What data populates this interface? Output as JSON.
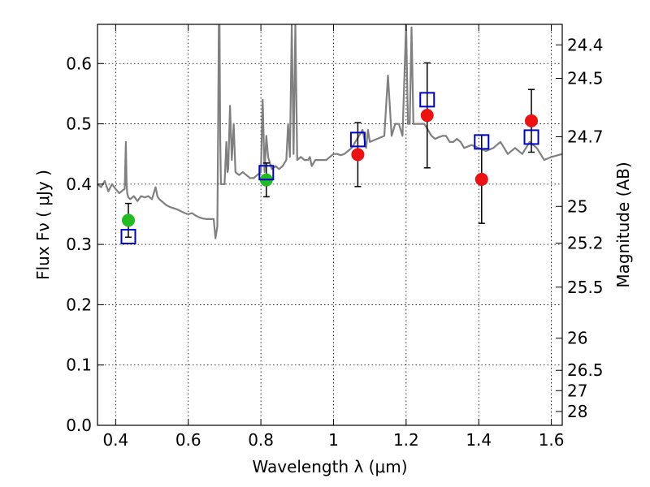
{
  "chart_data": {
    "type": "scatter",
    "xlabel": "Wavelength  λ (μm)",
    "ylabel": "Flux  Fν  ( μJy )",
    "y2label": "Magnitude (AB)",
    "xlim": [
      0.35,
      1.63
    ],
    "ylim": [
      0.0,
      0.665
    ],
    "grid": true,
    "x_ticks": [
      {
        "value": 0.4,
        "label": "0.4"
      },
      {
        "value": 0.6,
        "label": "0.6"
      },
      {
        "value": 0.8,
        "label": "0.8"
      },
      {
        "value": 1.0,
        "label": "1"
      },
      {
        "value": 1.2,
        "label": "1.2"
      },
      {
        "value": 1.4,
        "label": "1.4"
      },
      {
        "value": 1.6,
        "label": "1.6"
      }
    ],
    "y_ticks": [
      {
        "value": 0.0,
        "label": "0.0"
      },
      {
        "value": 0.1,
        "label": "0.1"
      },
      {
        "value": 0.2,
        "label": "0.2"
      },
      {
        "value": 0.3,
        "label": "0.3"
      },
      {
        "value": 0.4,
        "label": "0.4"
      },
      {
        "value": 0.5,
        "label": "0.5"
      },
      {
        "value": 0.6,
        "label": "0.6"
      }
    ],
    "mag_ticks": [
      {
        "value": 24.4,
        "label": "24.4"
      },
      {
        "value": 24.5,
        "label": "24.5"
      },
      {
        "value": 24.7,
        "label": "24.7"
      },
      {
        "value": 25.0,
        "label": "25"
      },
      {
        "value": 25.2,
        "label": "25.2"
      },
      {
        "value": 25.5,
        "label": "25.5"
      },
      {
        "value": 26.0,
        "label": "26"
      },
      {
        "value": 26.5,
        "label": "26.5"
      },
      {
        "value": 27.0,
        "label": "27"
      },
      {
        "value": 28.0,
        "label": "28"
      }
    ],
    "series": [
      {
        "kind": "line",
        "color": "#808080",
        "x": [
          0.35,
          0.36,
          0.37,
          0.38,
          0.39,
          0.4,
          0.41,
          0.42,
          0.425,
          0.428,
          0.43,
          0.432,
          0.435,
          0.44,
          0.45,
          0.46,
          0.47,
          0.48,
          0.49,
          0.5,
          0.505,
          0.51,
          0.515,
          0.52,
          0.53,
          0.54,
          0.55,
          0.56,
          0.57,
          0.58,
          0.59,
          0.6,
          0.61,
          0.62,
          0.63,
          0.64,
          0.65,
          0.66,
          0.67,
          0.675,
          0.68,
          0.682,
          0.684,
          0.686,
          0.688,
          0.69,
          0.7,
          0.705,
          0.708,
          0.71,
          0.715,
          0.72,
          0.725,
          0.73,
          0.74,
          0.75,
          0.76,
          0.77,
          0.78,
          0.79,
          0.8,
          0.805,
          0.81,
          0.815,
          0.82,
          0.83,
          0.84,
          0.85,
          0.86,
          0.87,
          0.875,
          0.88,
          0.885,
          0.89,
          0.895,
          0.9,
          0.91,
          0.92,
          0.93,
          0.935,
          0.94,
          0.95,
          0.96,
          0.97,
          0.98,
          0.99,
          1.0,
          1.01,
          1.02,
          1.03,
          1.04,
          1.05,
          1.06,
          1.08,
          1.09,
          1.095,
          1.1,
          1.12,
          1.14,
          1.15,
          1.16,
          1.17,
          1.18,
          1.19,
          1.2,
          1.205,
          1.21,
          1.215,
          1.22,
          1.24,
          1.25,
          1.26,
          1.27,
          1.28,
          1.29,
          1.3,
          1.31,
          1.32,
          1.33,
          1.34,
          1.35,
          1.36,
          1.38,
          1.4,
          1.42,
          1.44,
          1.46,
          1.48,
          1.5,
          1.52,
          1.54,
          1.56,
          1.58,
          1.6,
          1.63
        ],
        "y": [
          0.4,
          0.395,
          0.405,
          0.388,
          0.4,
          0.392,
          0.385,
          0.39,
          0.392,
          0.47,
          0.4,
          0.385,
          0.378,
          0.375,
          0.38,
          0.372,
          0.38,
          0.378,
          0.38,
          0.375,
          0.385,
          0.395,
          0.38,
          0.375,
          0.37,
          0.365,
          0.362,
          0.36,
          0.358,
          0.355,
          0.352,
          0.35,
          0.352,
          0.348,
          0.345,
          0.343,
          0.342,
          0.342,
          0.342,
          0.31,
          0.33,
          0.48,
          0.665,
          0.665,
          0.48,
          0.4,
          0.4,
          0.47,
          0.42,
          0.425,
          0.53,
          0.44,
          0.5,
          0.42,
          0.415,
          0.42,
          0.415,
          0.41,
          0.41,
          0.415,
          0.42,
          0.54,
          0.42,
          0.48,
          0.445,
          0.425,
          0.43,
          0.425,
          0.43,
          0.44,
          0.5,
          0.445,
          0.665,
          0.45,
          0.665,
          0.44,
          0.445,
          0.44,
          0.44,
          0.445,
          0.43,
          0.44,
          0.44,
          0.44,
          0.44,
          0.445,
          0.45,
          0.45,
          0.448,
          0.45,
          0.455,
          0.46,
          0.47,
          0.49,
          0.46,
          0.49,
          0.47,
          0.475,
          0.48,
          0.58,
          0.48,
          0.5,
          0.5,
          0.48,
          0.665,
          0.5,
          0.5,
          0.66,
          0.5,
          0.5,
          0.5,
          0.49,
          0.48,
          0.475,
          0.478,
          0.48,
          0.48,
          0.47,
          0.47,
          0.475,
          0.47,
          0.46,
          0.465,
          0.46,
          0.455,
          0.46,
          0.47,
          0.45,
          0.46,
          0.45,
          0.47,
          0.46,
          0.44,
          0.445,
          0.45
        ]
      },
      {
        "kind": "points",
        "marker": "circle",
        "color": "#22bb22",
        "x": [
          0.435,
          0.815
        ],
        "y": [
          0.34,
          0.407
        ],
        "yerr": [
          0.028,
          0.028
        ]
      },
      {
        "kind": "points",
        "marker": "circle",
        "color": "#ee1111",
        "x": [
          1.067,
          1.258,
          1.408,
          1.545
        ],
        "y": [
          0.449,
          0.514,
          0.408,
          0.505
        ],
        "yerr": [
          0.053,
          0.087,
          0.073,
          0.052
        ]
      },
      {
        "kind": "points",
        "marker": "square-open",
        "color": "#0000cc",
        "x": [
          0.435,
          0.815,
          1.067,
          1.258,
          1.408,
          1.545
        ],
        "y": [
          0.313,
          0.419,
          0.474,
          0.54,
          0.47,
          0.478
        ]
      }
    ]
  }
}
